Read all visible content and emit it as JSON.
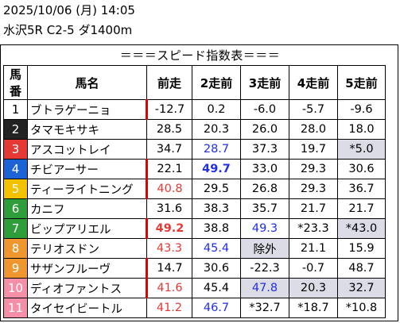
{
  "header": {
    "line1": "2025/10/06 (月) 14:05",
    "line2": "水沢5R C2-5 ダ1400m"
  },
  "section_title": "＝＝＝スピード指数表＝＝＝",
  "columns": [
    "馬番",
    "馬名",
    "前走",
    "2走前",
    "3走前",
    "4走前",
    "5走前"
  ],
  "colors": {
    "1": "#ffffff",
    "2": "#222222",
    "3": "#e53935",
    "4": "#1e63d6",
    "5": "#f2c200",
    "6": "#2e9e3a",
    "7": "#2e9e3a",
    "8": "#f0962e",
    "9": "#f0962e",
    "10": "#f58fa8",
    "11": "#f58fa8"
  },
  "rows": [
    {
      "num": "1",
      "name": "ブトラゲーニョ",
      "v": [
        "-12.7",
        "0.2",
        "-6.0",
        "-5.7",
        "-9.6"
      ]
    },
    {
      "num": "2",
      "name": "タマモキサキ",
      "v": [
        "28.5",
        "20.3",
        "26.0",
        "28.0",
        "18.0"
      ]
    },
    {
      "num": "3",
      "name": "アスコットレイ",
      "v": [
        "34.7",
        "28.7",
        "37.3",
        "19.7",
        "*5.0"
      ]
    },
    {
      "num": "4",
      "name": "チビアーサー",
      "v": [
        "22.1",
        "49.7",
        "33.0",
        "29.3",
        "30.6"
      ]
    },
    {
      "num": "5",
      "name": "ティーライトニング",
      "v": [
        "40.8",
        "29.5",
        "26.8",
        "29.3",
        "36.7"
      ]
    },
    {
      "num": "6",
      "name": "カニフ",
      "v": [
        "31.6",
        "38.3",
        "35.7",
        "21.7",
        "21.7"
      ]
    },
    {
      "num": "7",
      "name": "ビップアリエル",
      "v": [
        "49.2",
        "38.8",
        "49.3",
        "*23.3",
        "*43.0"
      ]
    },
    {
      "num": "8",
      "name": "テリオスドン",
      "v": [
        "43.3",
        "45.4",
        "除外",
        "21.1",
        "15.9"
      ]
    },
    {
      "num": "9",
      "name": "サザンフルーヴ",
      "v": [
        "14.7",
        "30.6",
        "-22.3",
        "-0.7",
        "48.7"
      ]
    },
    {
      "num": "10",
      "name": "ディオファントス",
      "v": [
        "41.6",
        "45.4",
        "47.8",
        "20.3",
        "32.7"
      ]
    },
    {
      "num": "11",
      "name": "タイセイビートル",
      "v": [
        "41.2",
        "46.7",
        "*32.7",
        "*18.7",
        "*10.8"
      ]
    }
  ]
}
